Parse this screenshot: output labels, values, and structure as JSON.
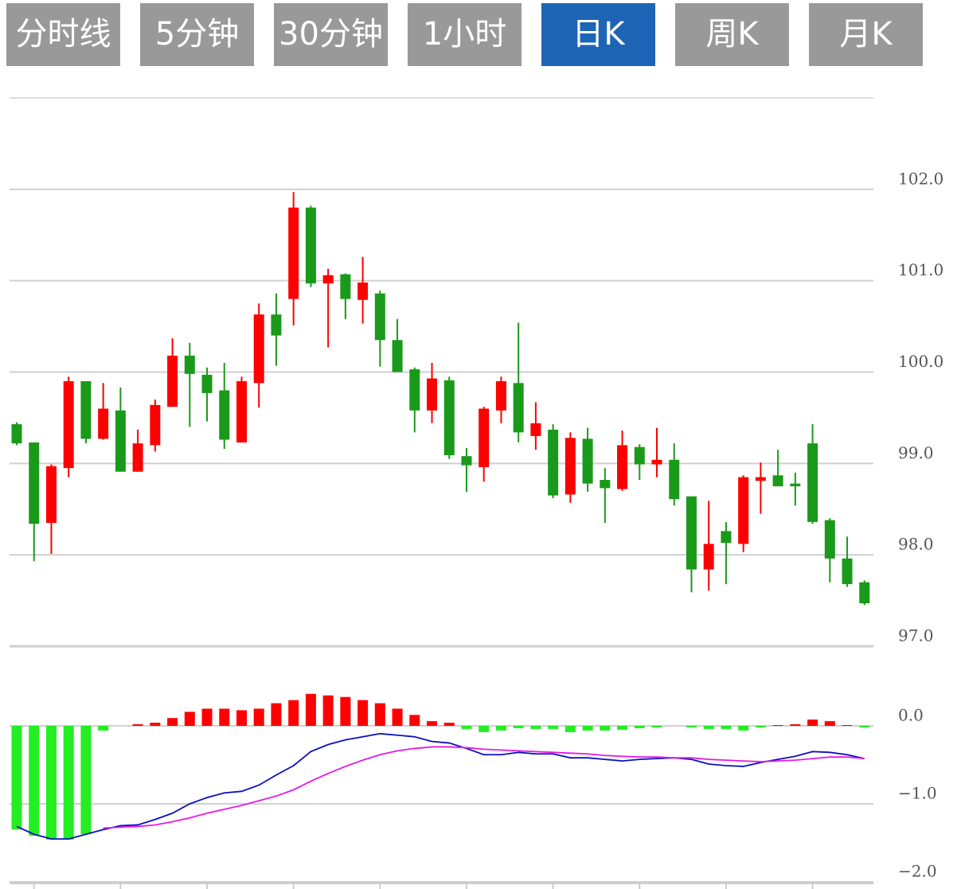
{
  "tabs": [
    {
      "label": "分时线",
      "active": false
    },
    {
      "label": "5分钟",
      "active": false
    },
    {
      "label": "30分钟",
      "active": false
    },
    {
      "label": "1小时",
      "active": false
    },
    {
      "label": "日K",
      "active": true
    },
    {
      "label": "周K",
      "active": false
    },
    {
      "label": "月K",
      "active": false
    }
  ],
  "chart_data": [
    {
      "type": "candlestick",
      "open": [
        99.43,
        99.23,
        98.35,
        98.95,
        99.9,
        99.27,
        99.58,
        98.91,
        99.2,
        99.62,
        100.18,
        99.97,
        99.8,
        99.23,
        99.88,
        100.63,
        100.8,
        101.8,
        100.97,
        101.07,
        100.79,
        100.86,
        100.35,
        100.03,
        99.58,
        99.91,
        99.08,
        98.96,
        99.58,
        99.88,
        99.3,
        99.37,
        98.66,
        99.27,
        98.82,
        98.72,
        99.18,
        98.99,
        99.04,
        98.64,
        97.84,
        98.26,
        98.12,
        98.81,
        98.87,
        98.78,
        99.22,
        98.38,
        97.96,
        97.7
      ],
      "high": [
        99.45,
        99.23,
        98.99,
        99.95,
        99.9,
        99.88,
        99.83,
        99.37,
        99.7,
        100.37,
        100.32,
        100.05,
        100.1,
        99.95,
        100.75,
        100.86,
        101.97,
        101.82,
        101.13,
        101.08,
        101.26,
        100.89,
        100.58,
        100.05,
        100.1,
        99.95,
        99.17,
        99.62,
        99.95,
        100.54,
        99.67,
        99.43,
        99.34,
        99.39,
        98.95,
        99.36,
        99.21,
        99.39,
        99.22,
        98.64,
        98.59,
        98.36,
        98.87,
        99.01,
        99.15,
        98.9,
        99.43,
        98.4,
        98.2,
        97.72
      ],
      "low": [
        99.2,
        97.93,
        98.01,
        98.85,
        99.22,
        99.26,
        98.91,
        98.91,
        99.13,
        99.62,
        99.4,
        99.46,
        99.16,
        99.23,
        99.61,
        100.07,
        100.51,
        100.93,
        100.27,
        100.58,
        100.53,
        100.06,
        100.0,
        99.34,
        99.44,
        99.05,
        98.69,
        98.8,
        99.44,
        99.23,
        99.15,
        98.62,
        98.57,
        98.69,
        98.35,
        98.7,
        98.82,
        98.85,
        98.54,
        97.59,
        97.61,
        97.68,
        98.03,
        98.45,
        98.75,
        98.54,
        98.34,
        97.7,
        97.65,
        97.45
      ],
      "close": [
        99.22,
        98.34,
        98.97,
        99.9,
        99.27,
        99.6,
        98.91,
        99.22,
        99.64,
        100.18,
        99.98,
        99.77,
        99.26,
        99.9,
        100.63,
        100.4,
        101.8,
        100.97,
        101.06,
        100.8,
        100.98,
        100.35,
        100.0,
        99.58,
        99.93,
        99.09,
        98.98,
        99.6,
        99.9,
        99.34,
        99.44,
        98.65,
        99.28,
        98.78,
        98.73,
        99.2,
        98.99,
        99.04,
        98.61,
        97.84,
        98.12,
        98.13,
        98.85,
        98.85,
        98.75,
        98.75,
        98.36,
        97.96,
        97.68,
        97.47
      ],
      "up_color": "#ff0000",
      "down_color": "#1a9a1a",
      "ylim": [
        97,
        103
      ],
      "yticks": [
        {
          "value": 97,
          "label": "97.0"
        },
        {
          "value": 98,
          "label": "98.0"
        },
        {
          "value": 99,
          "label": "99.0"
        },
        {
          "value": 100,
          "label": "100.0"
        },
        {
          "value": 101,
          "label": "101.0"
        },
        {
          "value": 102,
          "label": "102.0"
        }
      ],
      "grid": true
    },
    {
      "type": "macd",
      "values": [
        -1.33,
        -1.41,
        -1.46,
        -1.46,
        -1.39,
        -0.06,
        0,
        0.02,
        0.04,
        0.1,
        0.18,
        0.22,
        0.22,
        0.2,
        0.22,
        0.29,
        0.33,
        0.41,
        0.39,
        0.37,
        0.33,
        0.29,
        0.22,
        0.14,
        0.06,
        0.04,
        -0.04,
        -0.08,
        -0.06,
        -0.03,
        -0.04,
        -0.04,
        -0.08,
        -0.06,
        -0.06,
        -0.05,
        -0.03,
        -0.02,
        0,
        -0.02,
        -0.04,
        -0.04,
        -0.06,
        -0.02,
        0.01,
        0.02,
        0.08,
        0.06,
        0.01,
        -0.02
      ],
      "up_color": "#ff0000",
      "down_color": "#22ee22",
      "series": [
        {
          "color": "#0a10c0",
          "values": [
            -1.29,
            -1.39,
            -1.45,
            -1.45,
            -1.39,
            -1.33,
            -1.28,
            -1.27,
            -1.2,
            -1.12,
            -1.0,
            -0.92,
            -0.86,
            -0.84,
            -0.76,
            -0.63,
            -0.51,
            -0.33,
            -0.24,
            -0.18,
            -0.14,
            -0.1,
            -0.12,
            -0.14,
            -0.2,
            -0.22,
            -0.29,
            -0.37,
            -0.37,
            -0.34,
            -0.36,
            -0.36,
            -0.41,
            -0.41,
            -0.43,
            -0.45,
            -0.43,
            -0.42,
            -0.41,
            -0.43,
            -0.49,
            -0.51,
            -0.52,
            -0.47,
            -0.43,
            -0.39,
            -0.33,
            -0.34,
            -0.37,
            -0.42
          ]
        },
        {
          "color": "#e619e6",
          "values": [
            null,
            null,
            null,
            null,
            null,
            -1.31,
            -1.3,
            -1.29,
            -1.27,
            -1.23,
            -1.18,
            -1.12,
            -1.07,
            -1.02,
            -0.96,
            -0.9,
            -0.82,
            -0.71,
            -0.61,
            -0.52,
            -0.44,
            -0.37,
            -0.32,
            -0.29,
            -0.27,
            -0.27,
            -0.28,
            -0.3,
            -0.31,
            -0.32,
            -0.33,
            -0.34,
            -0.35,
            -0.36,
            -0.38,
            -0.39,
            -0.4,
            -0.4,
            -0.41,
            -0.41,
            -0.43,
            -0.44,
            -0.45,
            -0.46,
            -0.45,
            -0.44,
            -0.42,
            -0.4,
            -0.4,
            -0.42
          ]
        }
      ],
      "ylim": [
        -2,
        1
      ],
      "yticks": [
        {
          "value": 0,
          "label": "0.0"
        },
        {
          "value": -1,
          "label": "−1.0"
        },
        {
          "value": -2,
          "label": "−2.0"
        }
      ],
      "grid": true
    }
  ]
}
